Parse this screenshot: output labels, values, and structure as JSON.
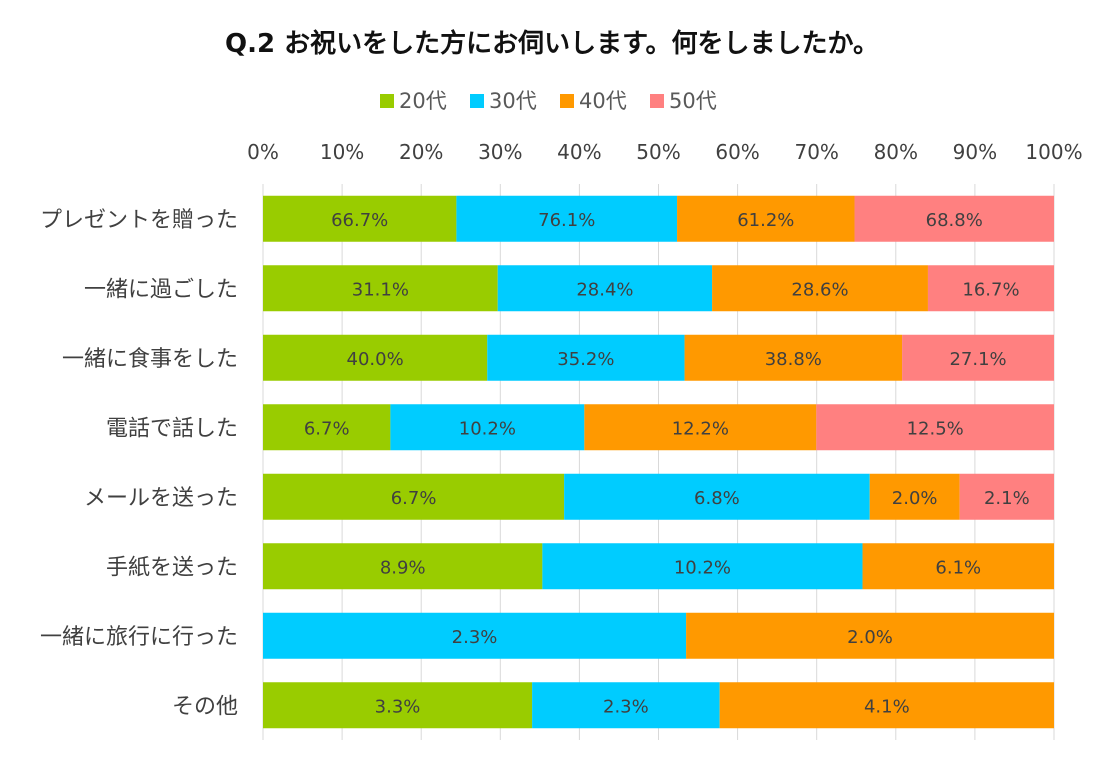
{
  "chart_data": {
    "type": "bar",
    "orientation": "horizontal",
    "stacking": "percent",
    "title": "Q.2 お祝いをした方にお伺いします。何をしましたか。",
    "legend_position": "top",
    "grid": true,
    "xlim": [
      0,
      100
    ],
    "x_ticks": [
      "0%",
      "10%",
      "20%",
      "30%",
      "40%",
      "50%",
      "60%",
      "70%",
      "80%",
      "90%",
      "100%"
    ],
    "categories": [
      "プレゼントを贈った",
      "一緒に過ごした",
      "一緒に食事をした",
      "電話で話した",
      "メールを送った",
      "手紙を送った",
      "一緒に旅行に行った",
      "その他"
    ],
    "series": [
      {
        "name": "20代",
        "color": "#99cc00",
        "values": [
          66.7,
          31.1,
          40.0,
          6.7,
          6.7,
          8.9,
          0,
          3.3
        ]
      },
      {
        "name": "30代",
        "color": "#00ccff",
        "values": [
          76.1,
          28.4,
          35.2,
          10.2,
          6.8,
          10.2,
          2.3,
          2.3
        ]
      },
      {
        "name": "40代",
        "color": "#ff9900",
        "values": [
          61.2,
          28.6,
          38.8,
          12.2,
          2.0,
          6.1,
          2.0,
          4.1
        ]
      },
      {
        "name": "50代",
        "color": "#ff8080",
        "values": [
          68.8,
          16.7,
          27.1,
          12.5,
          2.1,
          0,
          0,
          0
        ]
      }
    ],
    "value_suffix": "%"
  }
}
